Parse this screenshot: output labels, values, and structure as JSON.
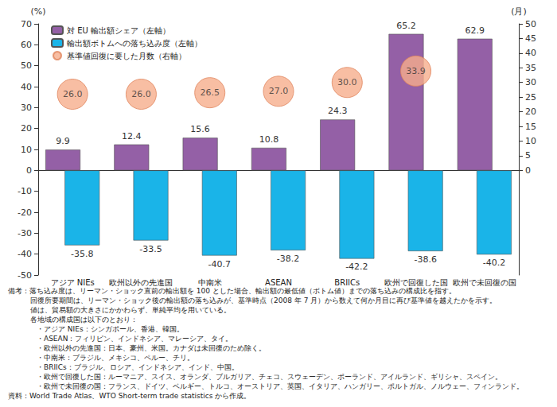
{
  "chart_data": {
    "type": "bar",
    "categories": [
      "アジア NIEs",
      "欧州以外の先進国",
      "中南米",
      "ASEAN",
      "BRIICs",
      "欧州で回復した国",
      "欧州で未回復の国"
    ],
    "series": [
      {
        "name": "対 EU 輸出額シェア（左軸）",
        "type": "bar",
        "color": "#9460a6",
        "values": [
          9.9,
          12.4,
          15.6,
          10.8,
          24.3,
          65.2,
          62.9
        ]
      },
      {
        "name": "輸出額ボトムへの落ち込み度（左軸）",
        "type": "bar",
        "color": "#1ab4e8",
        "values": [
          -35.8,
          -33.5,
          -40.7,
          -38.2,
          -42.2,
          -38.6,
          -40.2
        ]
      },
      {
        "name": "基準値回復に要した月数（右軸）",
        "type": "scatter",
        "axis": "y2",
        "marker": "circle",
        "color": "#f6ae8c",
        "values": [
          26.0,
          26.0,
          26.5,
          27.0,
          30.0,
          33.9,
          null
        ],
        "value_labels": [
          "26.0",
          "26.0",
          "26.5",
          "27.0",
          "30.0",
          "33.9",
          null
        ]
      }
    ],
    "ylabel": "(%)",
    "y2label": "(月)",
    "ylim": [
      -50,
      70
    ],
    "yticks": [
      -50,
      -40,
      -30,
      -20,
      -10,
      0,
      10,
      20,
      30,
      40,
      50,
      60,
      70
    ],
    "y2lim": [
      -35.7,
      50
    ],
    "y2ticks": [
      0,
      5,
      10,
      15,
      20,
      25,
      30,
      35,
      40,
      45,
      50
    ],
    "legend": "upper left",
    "data_labels": true,
    "grid": false,
    "notes": [
      "備考：落ち込み度は、リーマン・ショック直前の輸出額を 100 とした場合、輸出額の最低値（ボトム値）までの落ち込みの構成比を指す。",
      "回復所要期間は、リーマン・ショック後の輸出額の落ち込みが、基準時点（2008 年 7 月）から数えて何か月目に再び基準値を越えたかを示す。",
      "値は、貿易額の大きさにかかわらず、単純平均を用いている。",
      "各地域の構成国は以下のとおり：",
      "・アジア NIEs：シンガポール、香港、韓国。",
      "・ASEAN：フィリピン、インドネシア、マレーシア、タイ。",
      "・欧州以外の先進国：日本、豪州、米国。カナダは未回復のため除く。",
      "・中南米：ブラジル、メキシコ、ペルー、チリ。",
      "・BRIICs：ブラジル、ロシア、インドネシア、インド、中国。",
      "・欧州で回復した国：ルーマニア、スイス、オランダ、ブルガリア、チェコ、スウェーデン、ポーランド、アイルランド、ギリシャ、スペイン。",
      "・欧州で未回復の国：フランス、ドイツ、ベルギー、トルコ、オーストリア、英国、イタリア、ハンガリー、ポルトガル、ノルウェー、フィンランド。"
    ],
    "source": "資料：World Trade Atlas、WTO Short-term trade statistics から作成。"
  }
}
